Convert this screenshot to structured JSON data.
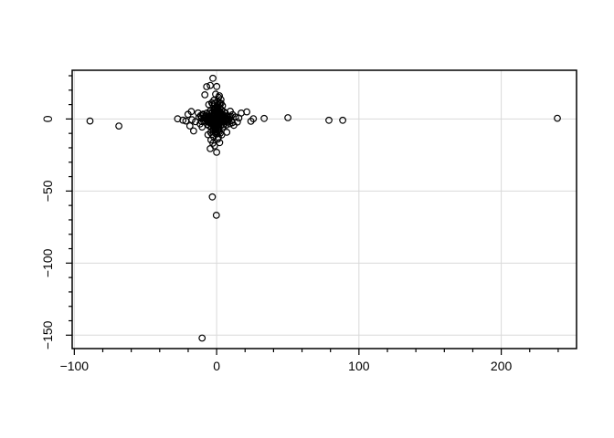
{
  "chart_data": {
    "type": "scatter",
    "title": "",
    "xlabel": "",
    "ylabel": "",
    "legend": "none",
    "grid": "major gridlines both axes, light gray",
    "marker": "open-circle",
    "colors": {
      "marker": "#000000",
      "grid": "#d9d9d9",
      "axis": "#000000",
      "background": "#ffffff"
    },
    "xlim": [
      -101.5,
      252.9
    ],
    "ylim": [
      -159.3,
      33.8
    ],
    "x_major_ticks": [
      -100,
      0,
      100,
      200
    ],
    "x_major_labels": [
      "−100",
      "0",
      "100",
      "200"
    ],
    "x_minor_ticks": [
      -80,
      -60,
      -40,
      -20,
      20,
      40,
      60,
      80,
      120,
      140,
      160,
      180,
      220,
      240
    ],
    "y_major_ticks": [
      0,
      -50,
      -100,
      -150
    ],
    "y_major_labels": [
      "0",
      "−50",
      "−100",
      "−150"
    ],
    "y_minor_ticks": [
      30,
      20,
      10,
      -10,
      -20,
      -30,
      -40,
      -60,
      -70,
      -80,
      -90,
      -110,
      -120,
      -130,
      -140
    ],
    "points": [
      [
        -89.0,
        -1.4
      ],
      [
        -68.7,
        -4.9
      ],
      [
        239.4,
        0.5
      ],
      [
        88.6,
        -0.9
      ],
      [
        78.9,
        -0.9
      ],
      [
        50.1,
        0.9
      ],
      [
        33.4,
        0.4
      ],
      [
        -10.2,
        -152.0
      ],
      [
        -0.2,
        -66.8
      ],
      [
        -3.0,
        -54.1
      ],
      [
        -27.4,
        0.1
      ],
      [
        -23.7,
        -0.8
      ],
      [
        -21.6,
        -1.4
      ],
      [
        -20.1,
        3.2
      ],
      [
        -18.8,
        -4.8
      ],
      [
        -17.8,
        5.2
      ],
      [
        -17.3,
        -0.5
      ],
      [
        -16.2,
        -8.3
      ],
      [
        -14.8,
        -1.9
      ],
      [
        -13.0,
        4.2
      ],
      [
        -12.4,
        1.1
      ],
      [
        -11.6,
        -3.4
      ],
      [
        -10.7,
        0.6
      ],
      [
        -10.2,
        -5.6
      ],
      [
        -9.8,
        2.9
      ],
      [
        -2.6,
        28.2
      ],
      [
        -4.5,
        23.3
      ],
      [
        0.1,
        22.5
      ],
      [
        -7.0,
        22.4
      ],
      [
        -8.3,
        16.8
      ],
      [
        1.9,
        16.1
      ],
      [
        -0.7,
        17.2
      ],
      [
        3.0,
        13.4
      ],
      [
        -1.9,
        13.0
      ],
      [
        1.4,
        15.0
      ],
      [
        -3.4,
        11.2
      ],
      [
        0.6,
        12.2
      ],
      [
        2.2,
        10.6
      ],
      [
        -5.5,
        10.0
      ],
      [
        -1.2,
        10.9
      ],
      [
        1.0,
        9.6
      ],
      [
        0.0,
        -23.1
      ],
      [
        -4.5,
        -20.6
      ],
      [
        -1.4,
        -18.6
      ],
      [
        -2.6,
        -16.8
      ],
      [
        2.1,
        -16.4
      ],
      [
        -4.0,
        -14.6
      ],
      [
        0.8,
        -14.0
      ],
      [
        1.2,
        -12.8
      ],
      [
        -2.2,
        -12.2
      ],
      [
        3.6,
        -11.0
      ],
      [
        -6.1,
        -10.9
      ],
      [
        0.2,
        -10.4
      ],
      [
        7.1,
        -9.2
      ],
      [
        -0.9,
        -9.8
      ],
      [
        9.6,
        5.4
      ],
      [
        10.4,
        -1.1
      ],
      [
        11.2,
        3.0
      ],
      [
        12.1,
        -4.4
      ],
      [
        13.2,
        1.4
      ],
      [
        14.6,
        -2.1
      ],
      [
        15.6,
        0.6
      ],
      [
        17.3,
        4.1
      ],
      [
        21.2,
        4.9
      ],
      [
        24.1,
        -1.6
      ],
      [
        25.8,
        0.2
      ],
      [
        10.0,
        1.8
      ],
      [
        -10.4,
        -1.8
      ],
      [
        2.6,
        -9.8
      ],
      [
        -2.7,
        10.1
      ],
      [
        11.0,
        -2.6
      ],
      [
        -11.2,
        2.4
      ],
      [
        3.1,
        10.8
      ],
      [
        -3.2,
        -10.7
      ],
      [
        9.4,
        -3.3
      ],
      [
        -9.5,
        3.4
      ],
      [
        4.1,
        9.2
      ],
      [
        -4.2,
        -9.3
      ],
      [
        0,
        0
      ],
      [
        0.3,
        -0.4
      ],
      [
        -0.5,
        0.2
      ],
      [
        0.8,
        0.6
      ],
      [
        -0.9,
        -0.7
      ],
      [
        1.2,
        0.1
      ],
      [
        -1.3,
        0.5
      ],
      [
        0.2,
        1.1
      ],
      [
        0.6,
        -1.2
      ],
      [
        -0.2,
        -1.4
      ],
      [
        1.5,
        -0.3
      ],
      [
        -1.6,
        -0.2
      ],
      [
        0.4,
        1.6
      ],
      [
        -0.6,
        1.3
      ],
      [
        0.9,
        -1.7
      ],
      [
        -1.1,
        1.0
      ],
      [
        1.8,
        0.8
      ],
      [
        -1.9,
        -1.1
      ],
      [
        0.1,
        -2.0
      ],
      [
        -0.3,
        2.1
      ],
      [
        2.2,
        -0.5
      ],
      [
        -2.3,
        0.3
      ],
      [
        0.7,
        2.3
      ],
      [
        -0.8,
        -2.2
      ],
      [
        1.4,
        1.9
      ],
      [
        -1.5,
        -1.8
      ],
      [
        2.5,
        1.2
      ],
      [
        -2.6,
        -0.9
      ],
      [
        1.0,
        -2.5
      ],
      [
        -1.2,
        2.4
      ],
      [
        2.8,
        0.2
      ],
      [
        -2.9,
        0.6
      ],
      [
        0.5,
        2.8
      ],
      [
        -0.4,
        -2.7
      ],
      [
        2.1,
        -1.6
      ],
      [
        -2.2,
        1.5
      ],
      [
        1.7,
        2.6
      ],
      [
        -1.8,
        -2.4
      ],
      [
        3.0,
        -1.0
      ],
      [
        -3.1,
        -0.4
      ],
      [
        0.2,
        3.1
      ],
      [
        -0.1,
        -3.0
      ],
      [
        2.9,
        1.8
      ],
      [
        -2.7,
        2.0
      ],
      [
        1.3,
        -2.9
      ],
      [
        -1.4,
        3.0
      ],
      [
        3.2,
        0.9
      ],
      [
        -3.3,
        -1.3
      ],
      [
        2.4,
        -2.1
      ],
      [
        -2.5,
        2.2
      ],
      [
        0.9,
        3.3
      ],
      [
        -1.0,
        -3.2
      ],
      [
        3.4,
        -0.2
      ],
      [
        -3.5,
        0.1
      ],
      [
        1.9,
        3.1
      ],
      [
        -2.0,
        -3.0
      ],
      [
        3.1,
        2.4
      ],
      [
        -3.0,
        -2.3
      ],
      [
        2.6,
        -2.8
      ],
      [
        -2.8,
        2.7
      ],
      [
        3.7,
        0.4
      ],
      [
        -3.8,
        -0.6
      ],
      [
        0.3,
        3.8
      ],
      [
        -0.5,
        -3.7
      ],
      [
        4.0,
        -1.1
      ],
      [
        -4.1,
        1.0
      ],
      [
        1.1,
        -3.9
      ],
      [
        -1.2,
        4.0
      ],
      [
        4.2,
        1.5
      ],
      [
        -4.3,
        -1.4
      ],
      [
        2.2,
        3.6
      ],
      [
        -2.3,
        -3.5
      ],
      [
        4.5,
        -0.3
      ],
      [
        -4.6,
        0.5
      ],
      [
        0.6,
        4.4
      ],
      [
        -0.7,
        -4.5
      ],
      [
        4.7,
        2.0
      ],
      [
        -4.8,
        -1.9
      ],
      [
        1.6,
        -4.3
      ],
      [
        -1.7,
        4.4
      ],
      [
        5.0,
        0.8
      ],
      [
        -5.1,
        -0.9
      ],
      [
        2.8,
        4.1
      ],
      [
        -2.9,
        -4.0
      ],
      [
        5.2,
        -1.7
      ],
      [
        -5.3,
        1.6
      ],
      [
        0.9,
        -5.0
      ],
      [
        -1.0,
        5.1
      ],
      [
        5.5,
        1.1
      ],
      [
        -5.6,
        -1.0
      ],
      [
        3.3,
        -4.4
      ],
      [
        -3.4,
        4.5
      ],
      [
        5.7,
        -0.5
      ],
      [
        -5.8,
        0.3
      ],
      [
        0.4,
        5.6
      ],
      [
        -0.2,
        -5.7
      ],
      [
        5.9,
        2.2
      ],
      [
        -6.0,
        -2.1
      ],
      [
        2.0,
        5.3
      ],
      [
        -2.1,
        -5.2
      ],
      [
        4.4,
        3.2
      ],
      [
        -4.5,
        -3.1
      ],
      [
        6.1,
        0.1
      ],
      [
        -6.2,
        -0.2
      ],
      [
        1.4,
        -5.8
      ],
      [
        -1.5,
        5.9
      ],
      [
        4.9,
        -3.6
      ],
      [
        -5.0,
        3.7
      ],
      [
        6.5,
        0.7
      ],
      [
        -6.6,
        -0.8
      ],
      [
        0.8,
        6.4
      ],
      [
        -0.9,
        -6.5
      ],
      [
        7.0,
        -1.3
      ],
      [
        -7.1,
        1.2
      ],
      [
        1.3,
        -6.9
      ],
      [
        -1.1,
        7.0
      ],
      [
        7.4,
        0.2
      ],
      [
        -7.5,
        -0.3
      ],
      [
        0.5,
        7.3
      ],
      [
        -0.6,
        -7.4
      ],
      [
        7.8,
        -2.0
      ],
      [
        -7.9,
        1.9
      ],
      [
        2.3,
        7.7
      ],
      [
        -2.4,
        -7.8
      ],
      [
        8.2,
        0.9
      ],
      [
        -8.3,
        -1.0
      ],
      [
        1.0,
        -8.1
      ],
      [
        -0.8,
        8.0
      ],
      [
        8.6,
        -0.4
      ],
      [
        -8.7,
        0.6
      ],
      [
        0.3,
        8.5
      ],
      [
        -0.4,
        -8.6
      ],
      [
        9.0,
        1.4
      ],
      [
        -9.1,
        -1.5
      ],
      [
        1.8,
        -8.9
      ],
      [
        -1.9,
        9.0
      ],
      [
        5.4,
        4.8
      ],
      [
        -5.5,
        -4.7
      ],
      [
        4.6,
        -5.3
      ],
      [
        -4.7,
        5.4
      ],
      [
        6.3,
        3.9
      ],
      [
        -6.4,
        -3.8
      ],
      [
        3.6,
        6.2
      ],
      [
        -3.7,
        -6.1
      ],
      [
        6.8,
        -4.2
      ],
      [
        -6.9,
        4.1
      ]
    ]
  }
}
